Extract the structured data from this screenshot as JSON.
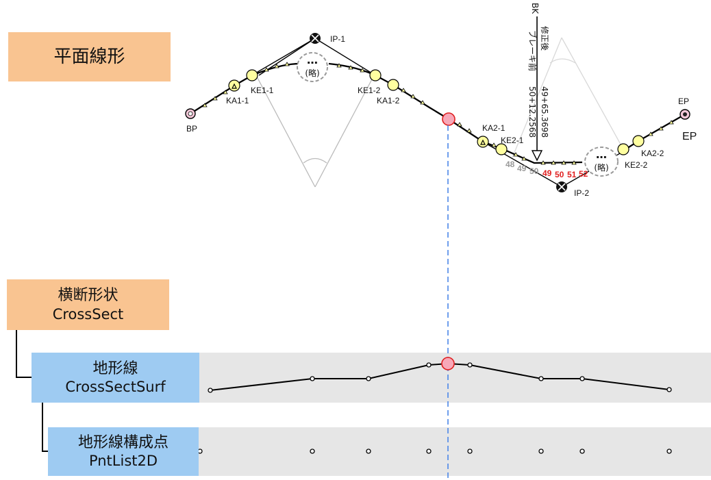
{
  "boxes": {
    "plan": {
      "label": "平面線形"
    },
    "cross_section": {
      "label": "横断形状",
      "class": "CrossSect"
    },
    "terrain_line": {
      "label": "地形線",
      "class": "CrossSectSurf"
    },
    "terrain_points": {
      "label": "地形線構成点",
      "class": "PntList2D"
    }
  },
  "points": {
    "bp": "BP",
    "ep": "EP",
    "ep_big": "EP",
    "ip1": "IP-1",
    "ip2": "IP-2",
    "ka1_1": "KA1-1",
    "ke1_1": "KE1-1",
    "ke1_2": "KE1-2",
    "ka1_2": "KA1-2",
    "ka2_1": "KA2-1",
    "ke2_1": "KE2-1",
    "ke2_2": "KE2-2",
    "ka2_2": "KA2-2"
  },
  "omitted_label": "(略)",
  "omitted_dots": "…",
  "station_labels_old": [
    "48",
    "49",
    "50"
  ],
  "station_labels_new": [
    "49",
    "50",
    "51",
    "52"
  ],
  "break": {
    "bk": "BK",
    "after_label": "修正後",
    "before_label": "ブレーキ前",
    "after_value": "49+65.3698",
    "before_value": "50+12.2568"
  },
  "colors": {
    "orange_box": "#f9c491",
    "blue_box": "#9ecbf2",
    "current_point": "#f7a8b8",
    "gray_band": "#e6e6e6",
    "dashed_line": "#4a86e8",
    "station_red": "#e02020"
  }
}
